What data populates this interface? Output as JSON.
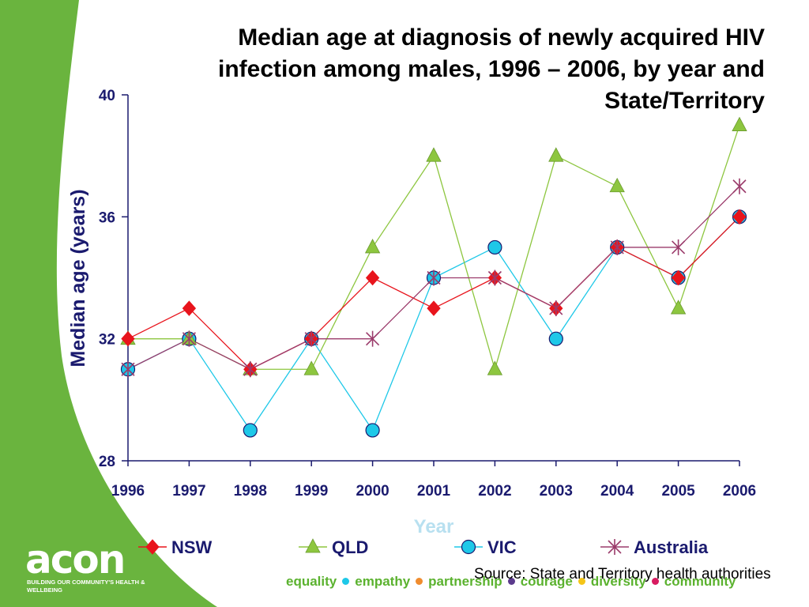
{
  "chart_data": {
    "type": "line",
    "title": "Median age at diagnosis of newly acquired HIV infection among males, 1996 – 2006, by year and State/Territory",
    "xlabel": "Year",
    "ylabel": "Median age (years)",
    "ylim": [
      28,
      40
    ],
    "yticks": [
      28,
      32,
      36,
      40
    ],
    "categories": [
      "1996",
      "1997",
      "1998",
      "1999",
      "2000",
      "2001",
      "2002",
      "2003",
      "2004",
      "2005",
      "2006"
    ],
    "legend_position": "bottom",
    "grid": false,
    "series": [
      {
        "name": "NSW",
        "color": "#e8141c",
        "marker": "diamond",
        "values": [
          32,
          33,
          31,
          32,
          34,
          33,
          34,
          33,
          35,
          34,
          36
        ]
      },
      {
        "name": "QLD",
        "color": "#8dc63f",
        "marker": "triangle",
        "values": [
          32,
          32,
          31,
          31,
          35,
          38,
          31,
          38,
          37,
          33,
          39
        ]
      },
      {
        "name": "VIC",
        "color": "#1ec8e8",
        "marker": "circle",
        "values": [
          31,
          32,
          29,
          32,
          29,
          34,
          35,
          32,
          35,
          34,
          36
        ]
      },
      {
        "name": "Australia",
        "color": "#9b3b6b",
        "marker": "star",
        "values": [
          31,
          32,
          31,
          32,
          32,
          34,
          34,
          33,
          35,
          35,
          37
        ]
      }
    ]
  },
  "source": "Source: State and Territory health authorities",
  "branding": {
    "logo": "acon",
    "tagline": "BUILDING OUR COMMUNITY'S HEALTH & WELLBEING",
    "values": [
      {
        "label": "equality",
        "dot_color": "#1ec8e8"
      },
      {
        "label": "empathy",
        "dot_color": "#f08c2e"
      },
      {
        "label": "partnership",
        "dot_color": "#5b3a8c"
      },
      {
        "label": "courage",
        "dot_color": "#f5c518"
      },
      {
        "label": "diversity",
        "dot_color": "#d81b60"
      },
      {
        "label": "community",
        "dot_color": ""
      }
    ],
    "accent_color": "#6ab43e"
  }
}
